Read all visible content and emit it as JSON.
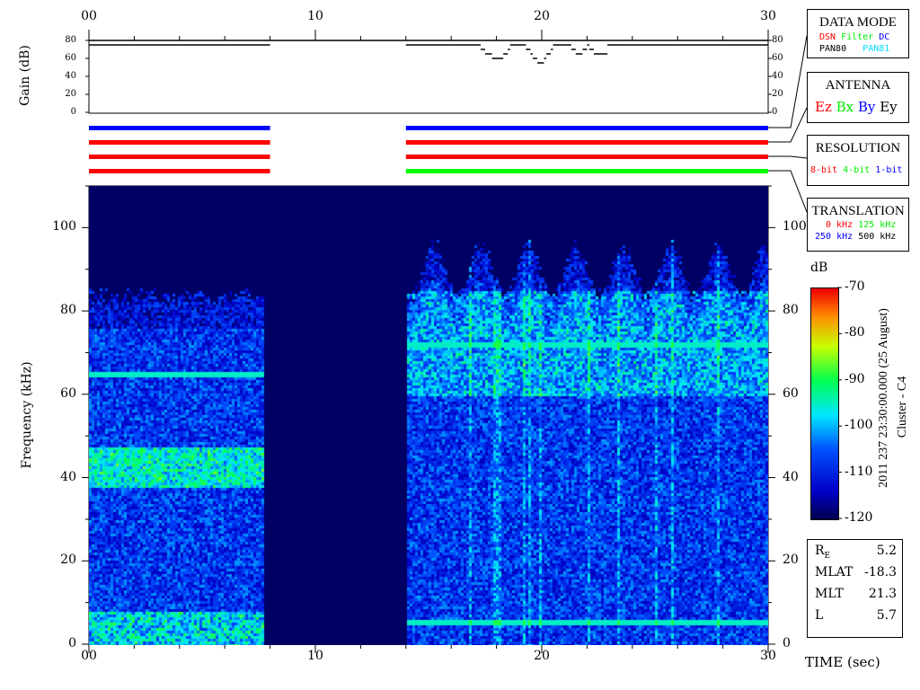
{
  "chart_data": {
    "type": "heatmap",
    "title": "",
    "xlabel": "TIME (sec)",
    "ylabel": "Frequency (kHz)",
    "xlim": [
      0,
      30
    ],
    "ylim": [
      0,
      110
    ],
    "x_ticks": [
      "00",
      "10",
      "20",
      "30"
    ],
    "y_ticks": [
      "0",
      "20",
      "40",
      "60",
      "80",
      "100"
    ],
    "data_gap_sec": [
      8,
      14
    ],
    "colorbar": {
      "label": "dB",
      "range": [
        -120,
        -70
      ],
      "ticks": [
        "-70",
        "-80",
        "-90",
        "-100",
        "-110",
        "-120"
      ]
    },
    "features": {
      "noise_ceiling_khz_left": 82,
      "noise_ceiling_khz_right": 88,
      "left_band_khz": [
        38,
        48
      ],
      "left_line_khz": 65,
      "right_lines_khz": [
        72,
        5.5
      ]
    },
    "gain": {
      "ylabel": "Gain (dB)",
      "ylim": [
        0,
        80
      ],
      "y_ticks": [
        "0",
        "20",
        "40",
        "60",
        "80"
      ],
      "points": [
        [
          0,
          75
        ],
        [
          8,
          75
        ],
        [
          14,
          75
        ],
        [
          17.2,
          75
        ],
        [
          17.3,
          70
        ],
        [
          17.5,
          65
        ],
        [
          17.8,
          60
        ],
        [
          18.3,
          65
        ],
        [
          18.5,
          70
        ],
        [
          18.6,
          75
        ],
        [
          19.2,
          75
        ],
        [
          19.3,
          70
        ],
        [
          19.5,
          65
        ],
        [
          19.6,
          60
        ],
        [
          19.8,
          55
        ],
        [
          20.1,
          60
        ],
        [
          20.2,
          65
        ],
        [
          20.4,
          70
        ],
        [
          20.5,
          75
        ],
        [
          21.1,
          75
        ],
        [
          21.3,
          70
        ],
        [
          21.5,
          65
        ],
        [
          21.8,
          70
        ],
        [
          22.0,
          75
        ],
        [
          22.1,
          70
        ],
        [
          22.3,
          65
        ],
        [
          22.8,
          65
        ],
        [
          22.9,
          75
        ],
        [
          30,
          75
        ]
      ]
    },
    "mode_bars": [
      {
        "segments": [
          {
            "from": 0,
            "to": 8,
            "color": "#0000ff"
          },
          {
            "from": 14,
            "to": 30,
            "color": "#0000ff"
          }
        ]
      },
      {
        "segments": [
          {
            "from": 0,
            "to": 8,
            "color": "#ff0000"
          },
          {
            "from": 14,
            "to": 30,
            "color": "#ff0000"
          }
        ]
      },
      {
        "segments": [
          {
            "from": 0,
            "to": 8,
            "color": "#ff0000"
          },
          {
            "from": 14,
            "to": 30,
            "color": "#ff0000"
          }
        ]
      },
      {
        "segments": [
          {
            "from": 0,
            "to": 8,
            "color": "#ff0000"
          },
          {
            "from": 14,
            "to": 30,
            "color": "#00ff00"
          }
        ]
      }
    ]
  },
  "legend": {
    "data_mode": {
      "title": "DATA MODE",
      "items": [
        {
          "t": "DSN",
          "c": "#ff0000"
        },
        {
          "t": "Filter",
          "c": "#00ee00"
        },
        {
          "t": "DC",
          "c": "#0000ff"
        },
        {
          "t": "PAN80",
          "c": "#000000"
        },
        {
          "t": "PAN81",
          "c": "#00e0ff"
        }
      ]
    },
    "antenna": {
      "title": "ANTENNA",
      "items": [
        {
          "t": "Ez",
          "c": "#ff0000"
        },
        {
          "t": "Bx",
          "c": "#00ee00"
        },
        {
          "t": "By",
          "c": "#0000ff"
        },
        {
          "t": "Ey",
          "c": "#000000"
        }
      ]
    },
    "resolution": {
      "title": "RESOLUTION",
      "items": [
        {
          "t": "8-bit",
          "c": "#ff0000"
        },
        {
          "t": "4-bit",
          "c": "#00ee00"
        },
        {
          "t": "1-bit",
          "c": "#0000ff"
        }
      ]
    },
    "translation": {
      "title": "TRANSLATION",
      "items": [
        {
          "t": "0 kHz",
          "c": "#ff0000"
        },
        {
          "t": "125 kHz",
          "c": "#00ee00"
        },
        {
          "t": "250 kHz",
          "c": "#0000ff"
        },
        {
          "t": "500 kHz",
          "c": "#000000"
        }
      ]
    }
  },
  "info": {
    "date_label": "2011 237 23:30:00.000 (25 August)",
    "spacecraft": "Cluster - C4",
    "rows": [
      {
        "k": "R",
        "sub": "E",
        "v": "5.2"
      },
      {
        "k": "MLAT",
        "v": "-18.3"
      },
      {
        "k": "MLT",
        "v": "21.3"
      },
      {
        "k": "L",
        "v": "5.7"
      }
    ]
  }
}
